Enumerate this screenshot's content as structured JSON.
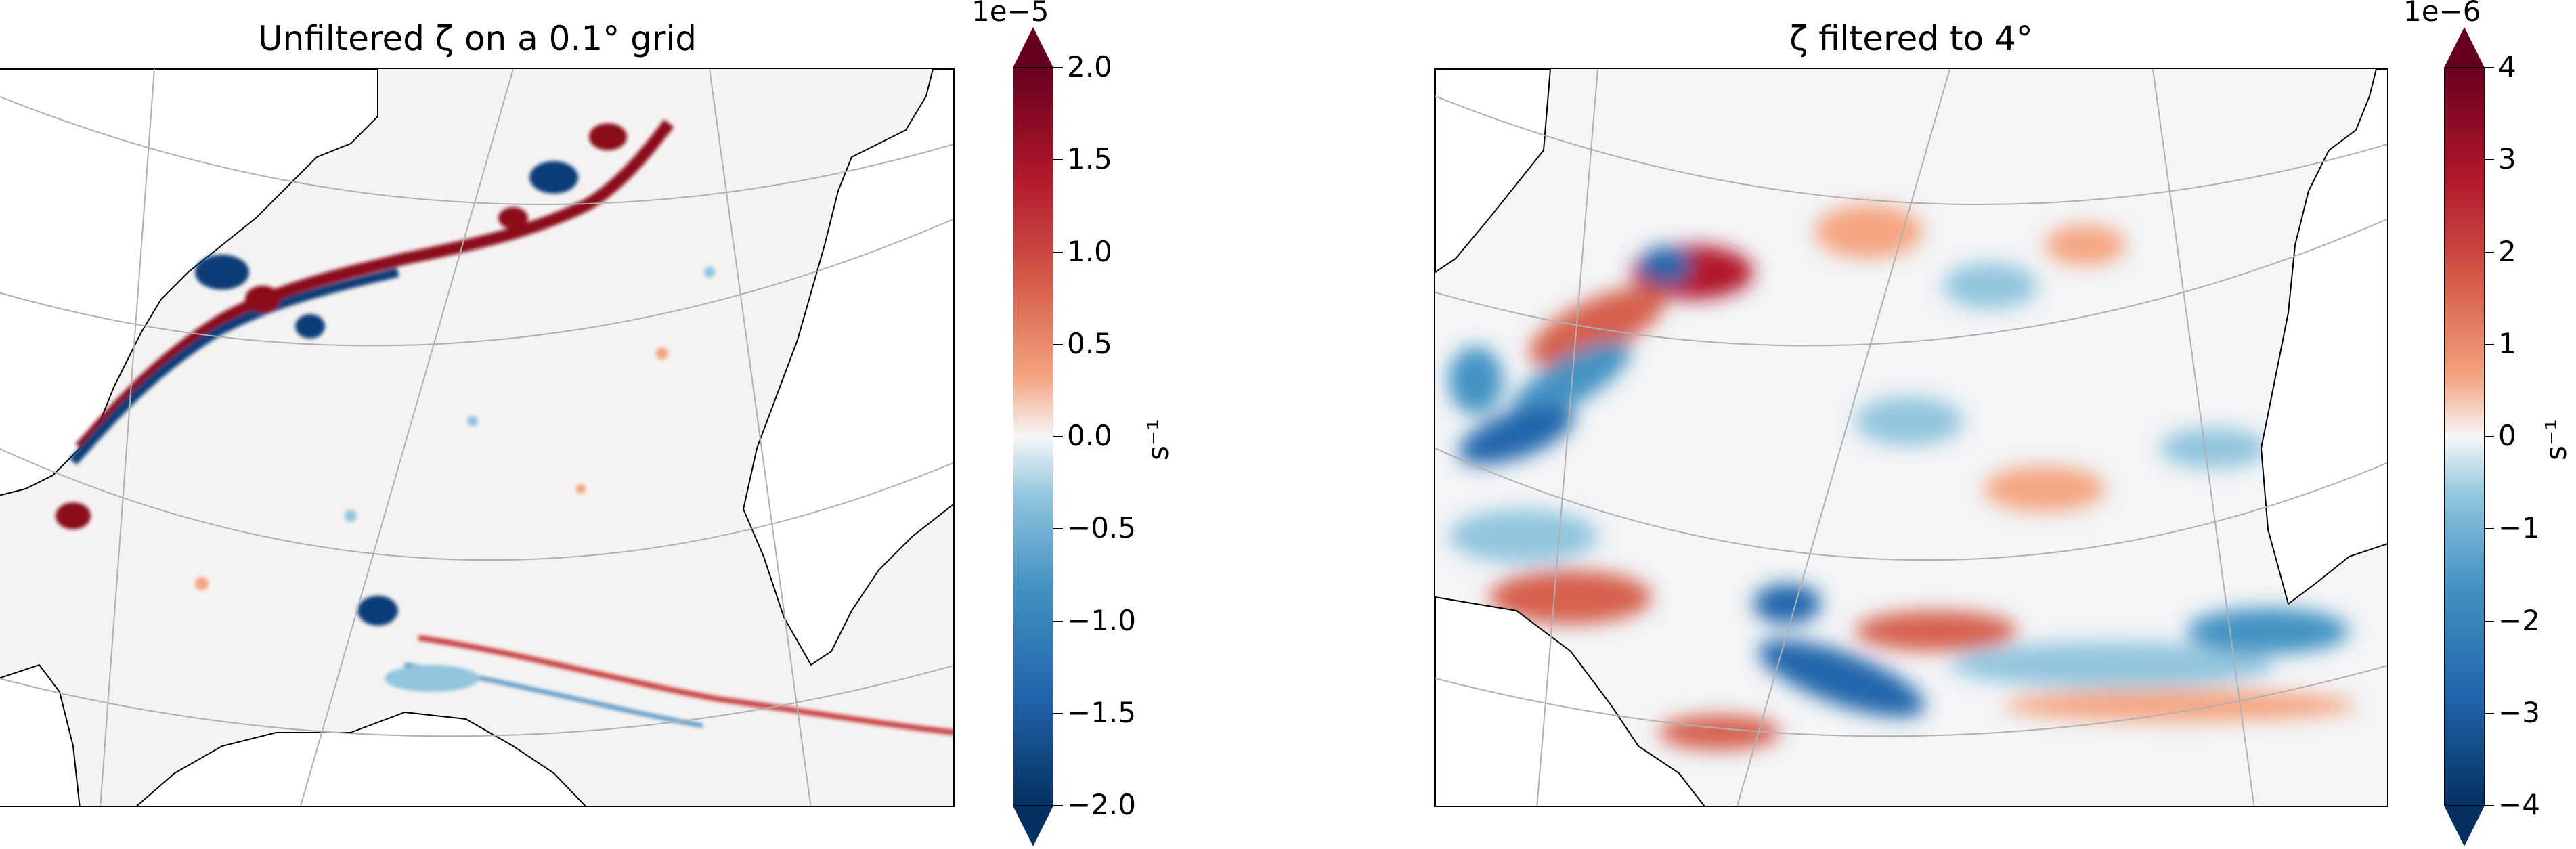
{
  "panels": [
    {
      "title": "Unfiltered ζ on a 0.1° grid",
      "colorbar": {
        "multiplier": "1e−5",
        "unit": "s⁻¹",
        "ticks": [
          "2.0",
          "1.5",
          "1.0",
          "0.5",
          "0.0",
          "−0.5",
          "−1.0",
          "−1.5",
          "−2.0"
        ],
        "range": [
          -2.0,
          2.0
        ],
        "extend": "both",
        "colormap": "RdBu_r"
      }
    },
    {
      "title": "ζ filtered to 4°",
      "colorbar": {
        "multiplier": "1e−6",
        "unit": "s⁻¹",
        "ticks": [
          "4",
          "3",
          "2",
          "1",
          "0",
          "−1",
          "−2",
          "−3",
          "−4"
        ],
        "range": [
          -4,
          4
        ],
        "extend": "both",
        "colormap": "RdBu_r"
      }
    }
  ],
  "colors": {
    "dark_red": "#67001f",
    "red": "#d6604d",
    "light_red": "#f4a582",
    "white": "#f7f7f7",
    "light_blue": "#92c5de",
    "blue": "#4393c3",
    "dark_blue": "#053061",
    "gridline": "#b0b0b0"
  }
}
